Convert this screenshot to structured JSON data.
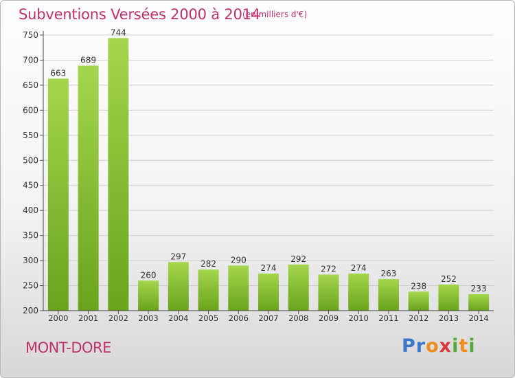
{
  "header": {
    "title": "Subventions Versées 2000 à 2014",
    "unit": "(en milliers d'€)"
  },
  "footer": {
    "city": "MONT-DORE",
    "logo": "Proxiti"
  },
  "colors": {
    "title": "#c0306c",
    "bar_light": "#a4d64e",
    "bar_dark": "#69a31c",
    "grid": "#d0d0d0"
  },
  "chart_data": {
    "type": "bar",
    "title": "Subventions Versées 2000 à 2014",
    "subtitle": "(en milliers d'€)",
    "xlabel": "",
    "ylabel": "",
    "categories": [
      "2000",
      "2001",
      "2002",
      "2003",
      "2004",
      "2005",
      "2006",
      "2007",
      "2008",
      "2009",
      "2010",
      "2011",
      "2012",
      "2013",
      "2014"
    ],
    "values": [
      663,
      689,
      744,
      260,
      297,
      282,
      290,
      274,
      292,
      272,
      274,
      263,
      238,
      252,
      233
    ],
    "ylim": [
      200,
      750
    ],
    "yticks": [
      200,
      250,
      300,
      350,
      400,
      450,
      500,
      550,
      600,
      650,
      700,
      750
    ],
    "grid": true,
    "data_labels": true
  }
}
